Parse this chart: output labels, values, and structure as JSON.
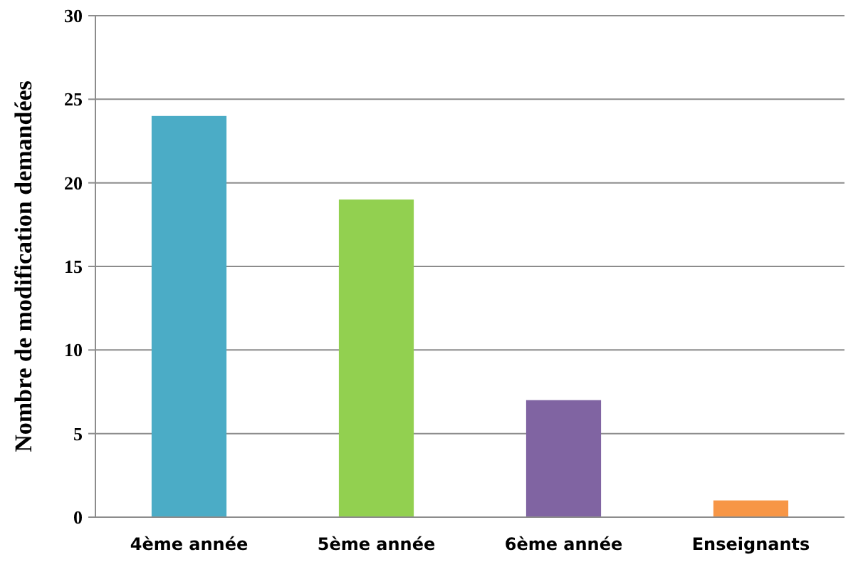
{
  "chart_data": {
    "type": "bar",
    "ylabel": "Nombre de modification demandées",
    "categories": [
      "4ème année",
      "5ème année",
      "6ème année",
      "Enseignants"
    ],
    "values": [
      24,
      19,
      7,
      1
    ],
    "colors": [
      "#4bacc6",
      "#92d050",
      "#8064a2",
      "#f79646"
    ],
    "ylim": [
      0,
      30
    ],
    "yticks": [
      0,
      5,
      10,
      15,
      20,
      25,
      30
    ],
    "grid": "y"
  }
}
